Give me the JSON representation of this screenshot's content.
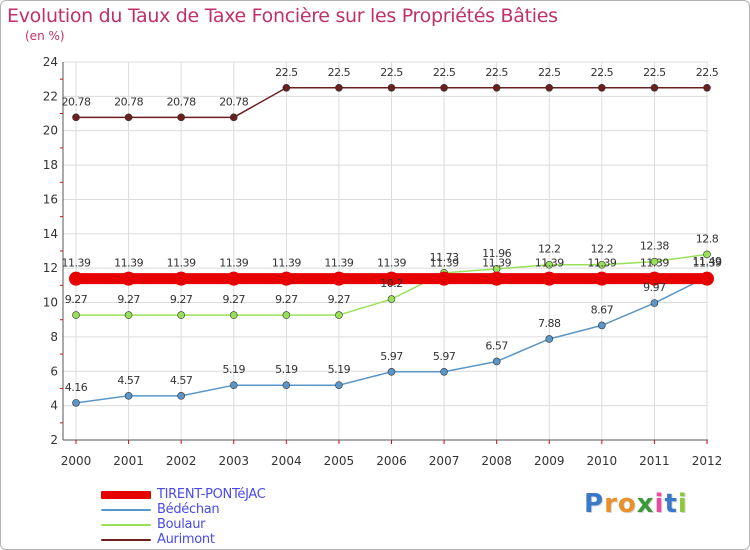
{
  "chart_data": {
    "type": "line",
    "title": "Evolution du Taux de Taxe Foncière sur les Propriétés Bâties",
    "subtitle": "(en %)",
    "xlabel": "",
    "ylabel": "",
    "x": [
      "2000",
      "2001",
      "2002",
      "2003",
      "2004",
      "2005",
      "2006",
      "2007",
      "2008",
      "2009",
      "2010",
      "2011",
      "2012"
    ],
    "ylim": [
      2,
      24
    ],
    "yticks": [
      "2",
      "4",
      "6",
      "8",
      "10",
      "12",
      "14",
      "16",
      "18",
      "20",
      "22",
      "24"
    ],
    "grid": true,
    "legend_position": "bottom-left",
    "series": [
      {
        "name": "TIRENT-PONTéJAC",
        "color": "#e60000",
        "values": [
          11.39,
          11.39,
          11.39,
          11.39,
          11.39,
          11.39,
          11.39,
          11.39,
          11.39,
          11.39,
          11.39,
          11.39,
          11.39
        ],
        "labels": [
          "11.39",
          "11.39",
          "11.39",
          "11.39",
          "11.39",
          "11.39",
          "11.39",
          "11.39",
          "11.39",
          "11.39",
          "11.39",
          "11.39",
          "11.39"
        ]
      },
      {
        "name": "Bédéchan",
        "color": "#5b96c8",
        "values": [
          4.16,
          4.57,
          4.57,
          5.19,
          5.19,
          5.19,
          5.97,
          5.97,
          6.57,
          7.88,
          8.67,
          9.97,
          11.49
        ],
        "labels": [
          "4.16",
          "4.57",
          "4.57",
          "5.19",
          "5.19",
          "5.19",
          "5.97",
          "5.97",
          "6.57",
          "7.88",
          "8.67",
          "9.97",
          "11.49"
        ]
      },
      {
        "name": "Boulaur",
        "color": "#99e05a",
        "values": [
          9.27,
          9.27,
          9.27,
          9.27,
          9.27,
          9.27,
          10.2,
          11.73,
          11.96,
          12.2,
          12.2,
          12.38,
          12.8
        ],
        "labels": [
          "9.27",
          "9.27",
          "9.27",
          "9.27",
          "9.27",
          "9.27",
          "10.2",
          "11.73",
          "11.96",
          "12.2",
          "12.2",
          "12.38",
          "12.8"
        ]
      },
      {
        "name": "Aurimont",
        "color": "#6b1f1f",
        "values": [
          20.78,
          20.78,
          20.78,
          20.78,
          22.5,
          22.5,
          22.5,
          22.5,
          22.5,
          22.5,
          22.5,
          22.5,
          22.5
        ],
        "labels": [
          "20.78",
          "20.78",
          "20.78",
          "20.78",
          "22.5",
          "22.5",
          "22.5",
          "22.5",
          "22.5",
          "22.5",
          "22.5",
          "22.5",
          "22.5"
        ]
      }
    ]
  },
  "logo": {
    "letters": [
      "P",
      "r",
      "o",
      "x",
      "i",
      "t",
      "i"
    ],
    "colors": [
      "#3a78c8",
      "#e8902a",
      "#e8902a",
      "#3a9a3a",
      "#e84aa0",
      "#3a78c8",
      "#8ac83a"
    ]
  }
}
